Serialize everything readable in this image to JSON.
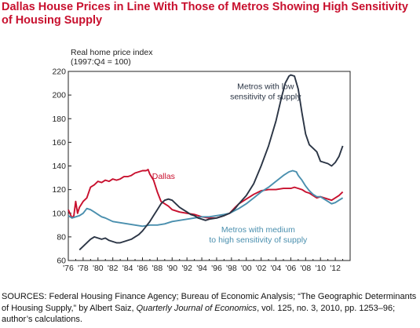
{
  "chart_data": {
    "type": "line",
    "title": "Dallas House Prices in Line With Those of Metros Showing High Sensitivity of Housing Supply",
    "ylabel_lines": [
      "Real home price index",
      "(1997:Q4 = 100)"
    ],
    "xlabel": "",
    "ylim": [
      60,
      220
    ],
    "yticks": [
      60,
      80,
      100,
      120,
      140,
      160,
      180,
      200,
      220
    ],
    "xlim": [
      1976,
      2014
    ],
    "xticks": [
      {
        "value": 1976,
        "label": "'76"
      },
      {
        "value": 1978,
        "label": "'78"
      },
      {
        "value": 1980,
        "label": "'80"
      },
      {
        "value": 1982,
        "label": "'82"
      },
      {
        "value": 1984,
        "label": "'84"
      },
      {
        "value": 1986,
        "label": "'86"
      },
      {
        "value": 1988,
        "label": "'88"
      },
      {
        "value": 1990,
        "label": "'90"
      },
      {
        "value": 1992,
        "label": "'92"
      },
      {
        "value": 1994,
        "label": "'94"
      },
      {
        "value": 1996,
        "label": "'96"
      },
      {
        "value": 1998,
        "label": "'98"
      },
      {
        "value": 2000,
        "label": "'00"
      },
      {
        "value": 2002,
        "label": "'02"
      },
      {
        "value": 2004,
        "label": "'04"
      },
      {
        "value": 2006,
        "label": "'06"
      },
      {
        "value": 2008,
        "label": "'08"
      },
      {
        "value": 2010,
        "label": "'10"
      },
      {
        "value": 2012,
        "label": "'12"
      }
    ],
    "grid": false,
    "series": [
      {
        "name": "Dallas",
        "color": "#c8102e",
        "points": [
          [
            1976.0,
            103
          ],
          [
            1976.5,
            96
          ],
          [
            1976.75,
            98
          ],
          [
            1977.0,
            110
          ],
          [
            1977.25,
            100
          ],
          [
            1977.5,
            105
          ],
          [
            1978.0,
            110
          ],
          [
            1978.5,
            113
          ],
          [
            1979.0,
            122
          ],
          [
            1979.5,
            124
          ],
          [
            1980.0,
            127
          ],
          [
            1980.5,
            126
          ],
          [
            1981.0,
            128
          ],
          [
            1981.5,
            127
          ],
          [
            1982.0,
            129
          ],
          [
            1982.5,
            128
          ],
          [
            1983.0,
            129
          ],
          [
            1983.5,
            131
          ],
          [
            1984.0,
            131
          ],
          [
            1984.5,
            132
          ],
          [
            1985.0,
            134
          ],
          [
            1985.5,
            135
          ],
          [
            1986.0,
            136
          ],
          [
            1986.5,
            136
          ],
          [
            1986.75,
            137
          ],
          [
            1987.0,
            133
          ],
          [
            1987.5,
            128
          ],
          [
            1988.0,
            118
          ],
          [
            1988.5,
            110
          ],
          [
            1989.0,
            108
          ],
          [
            1989.5,
            106
          ],
          [
            1990.0,
            103
          ],
          [
            1991.0,
            101
          ],
          [
            1992.0,
            100
          ],
          [
            1993.0,
            99
          ],
          [
            1994.0,
            97
          ],
          [
            1995.0,
            96
          ],
          [
            1996.0,
            96
          ],
          [
            1997.0,
            98
          ],
          [
            1997.75,
            100
          ],
          [
            1998.5,
            105
          ],
          [
            1999.0,
            108
          ],
          [
            2000.0,
            112
          ],
          [
            2001.0,
            116
          ],
          [
            2002.0,
            119
          ],
          [
            2003.0,
            120
          ],
          [
            2004.0,
            120
          ],
          [
            2005.0,
            121
          ],
          [
            2006.0,
            121
          ],
          [
            2006.5,
            122
          ],
          [
            2007.0,
            121
          ],
          [
            2007.5,
            120
          ],
          [
            2008.0,
            118
          ],
          [
            2008.5,
            117
          ],
          [
            2009.0,
            115
          ],
          [
            2009.5,
            113
          ],
          [
            2010.0,
            114
          ],
          [
            2010.5,
            113
          ],
          [
            2011.0,
            112
          ],
          [
            2011.5,
            111
          ],
          [
            2012.0,
            113
          ],
          [
            2012.5,
            115
          ],
          [
            2013.0,
            118
          ]
        ]
      },
      {
        "name": "Metros with medium to high sensitivity of supply",
        "color": "#4a8fae",
        "points": [
          [
            1976.0,
            98
          ],
          [
            1976.5,
            96
          ],
          [
            1977.0,
            97
          ],
          [
            1977.5,
            98
          ],
          [
            1978.0,
            100
          ],
          [
            1978.5,
            104
          ],
          [
            1979.0,
            103
          ],
          [
            1979.5,
            101
          ],
          [
            1980.0,
            99
          ],
          [
            1980.5,
            97
          ],
          [
            1981.0,
            96
          ],
          [
            1982.0,
            93
          ],
          [
            1983.0,
            92
          ],
          [
            1984.0,
            91
          ],
          [
            1985.0,
            90
          ],
          [
            1986.0,
            89
          ],
          [
            1987.0,
            90
          ],
          [
            1988.0,
            90
          ],
          [
            1989.0,
            91
          ],
          [
            1990.0,
            93
          ],
          [
            1991.0,
            94
          ],
          [
            1992.0,
            95
          ],
          [
            1993.0,
            96
          ],
          [
            1994.0,
            97
          ],
          [
            1995.0,
            97
          ],
          [
            1996.0,
            98
          ],
          [
            1997.0,
            99
          ],
          [
            1997.75,
            100
          ],
          [
            1999.0,
            104
          ],
          [
            2000.0,
            108
          ],
          [
            2001.0,
            113
          ],
          [
            2002.0,
            118
          ],
          [
            2003.0,
            122
          ],
          [
            2004.0,
            127
          ],
          [
            2005.0,
            132
          ],
          [
            2005.75,
            135
          ],
          [
            2006.25,
            136
          ],
          [
            2006.75,
            135
          ],
          [
            2007.0,
            132
          ],
          [
            2007.5,
            128
          ],
          [
            2008.0,
            123
          ],
          [
            2008.5,
            119
          ],
          [
            2009.0,
            116
          ],
          [
            2009.5,
            114
          ],
          [
            2010.0,
            114
          ],
          [
            2010.5,
            112
          ],
          [
            2011.0,
            110
          ],
          [
            2011.5,
            108
          ],
          [
            2012.0,
            109
          ],
          [
            2012.5,
            111
          ],
          [
            2013.0,
            113
          ]
        ]
      },
      {
        "name": "Metros with low sensitivity of supply",
        "color": "#2b3545",
        "points": [
          [
            1977.5,
            69
          ],
          [
            1978.0,
            72
          ],
          [
            1978.5,
            75
          ],
          [
            1979.0,
            78
          ],
          [
            1979.5,
            80
          ],
          [
            1980.0,
            79
          ],
          [
            1980.5,
            78
          ],
          [
            1981.0,
            79
          ],
          [
            1981.5,
            77
          ],
          [
            1982.0,
            76
          ],
          [
            1982.5,
            75
          ],
          [
            1983.0,
            75
          ],
          [
            1983.5,
            76
          ],
          [
            1984.0,
            77
          ],
          [
            1984.5,
            78
          ],
          [
            1985.0,
            80
          ],
          [
            1985.5,
            82
          ],
          [
            1986.0,
            85
          ],
          [
            1986.5,
            89
          ],
          [
            1987.0,
            93
          ],
          [
            1987.5,
            98
          ],
          [
            1988.0,
            103
          ],
          [
            1988.5,
            108
          ],
          [
            1989.0,
            111
          ],
          [
            1989.5,
            112
          ],
          [
            1990.0,
            111
          ],
          [
            1990.5,
            108
          ],
          [
            1991.0,
            105
          ],
          [
            1991.5,
            103
          ],
          [
            1992.0,
            101
          ],
          [
            1992.5,
            99
          ],
          [
            1993.0,
            98
          ],
          [
            1993.5,
            96
          ],
          [
            1994.0,
            95
          ],
          [
            1994.5,
            94
          ],
          [
            1995.0,
            95
          ],
          [
            1996.0,
            96
          ],
          [
            1997.0,
            98
          ],
          [
            1997.75,
            100
          ],
          [
            1998.5,
            104
          ],
          [
            1999.0,
            108
          ],
          [
            2000.0,
            115
          ],
          [
            2001.0,
            125
          ],
          [
            2002.0,
            140
          ],
          [
            2003.0,
            157
          ],
          [
            2004.0,
            178
          ],
          [
            2004.75,
            198
          ],
          [
            2005.25,
            210
          ],
          [
            2005.75,
            216
          ],
          [
            2006.0,
            217
          ],
          [
            2006.5,
            216
          ],
          [
            2007.0,
            205
          ],
          [
            2007.5,
            185
          ],
          [
            2008.0,
            167
          ],
          [
            2008.5,
            158
          ],
          [
            2009.0,
            155
          ],
          [
            2009.5,
            152
          ],
          [
            2010.0,
            144
          ],
          [
            2010.5,
            143
          ],
          [
            2011.0,
            142
          ],
          [
            2011.5,
            140
          ],
          [
            2012.0,
            143
          ],
          [
            2012.5,
            148
          ],
          [
            2013.0,
            157
          ]
        ]
      }
    ],
    "annotations": [
      {
        "series": "Dallas",
        "lines": [
          "Dallas"
        ],
        "color": "#c8102e",
        "anchor_x": 1987.3,
        "anchor_y": 129,
        "align": "start"
      },
      {
        "series": "Metros with low sensitivity of supply",
        "lines": [
          "Metros with low",
          "sensitivity of supply"
        ],
        "color": "#2b3545",
        "anchor_x": 2002.6,
        "anchor_y": 205,
        "align": "middle"
      },
      {
        "series": "Metros with medium to high sensitivity of supply",
        "lines": [
          "Metros with medium",
          "to high sensitivity of supply"
        ],
        "color": "#4a8fae",
        "anchor_x": 2001.6,
        "anchor_y": 84,
        "align": "middle"
      }
    ]
  },
  "sources": {
    "prefix": "SOURCES: Federal Housing Finance Agency; Bureau of Economic Analysis; “The Geographic Determinants of Housing Supply,” by Albert Saiz, ",
    "journal": "Quarterly Journal of Economics",
    "suffix": ", vol. 125, no. 3, 2010, pp. 1253–96; author’s calculations."
  }
}
